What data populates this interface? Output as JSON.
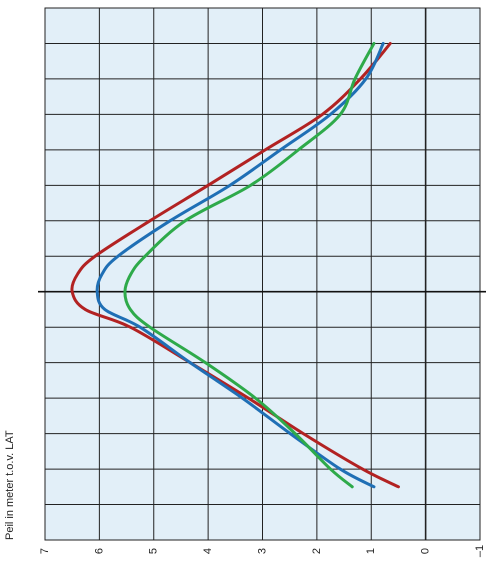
{
  "chart_data": {
    "type": "line",
    "y_label": "Peil in meter t.o.v. LAT",
    "ylim": [
      7,
      -1
    ],
    "yticks": [
      7,
      6,
      5,
      4,
      3,
      2,
      1,
      0,
      {
        "value": -1,
        "label": "–1"
      }
    ],
    "xlim": [
      -8,
      7
    ],
    "xticks": [
      -8,
      -7,
      -6,
      -5,
      -4,
      -3,
      -2,
      -1,
      0,
      1,
      2,
      3,
      4,
      5,
      6,
      7
    ],
    "grid": true,
    "background": "#e2eff8",
    "x": [
      -7,
      -6,
      -5,
      -4,
      -3,
      -2,
      -1,
      -0.5,
      0,
      0.5,
      1,
      2,
      3,
      4,
      5,
      5.5
    ],
    "series": [
      {
        "color": "#b22222",
        "values": [
          0.65,
          1.2,
          1.9,
          2.95,
          4.0,
          5.07,
          6.08,
          6.4,
          6.5,
          6.26,
          5.43,
          4.33,
          3.26,
          2.25,
          1.16,
          0.5
        ]
      },
      {
        "color": "#1f6fb5",
        "values": [
          0.78,
          1.1,
          1.75,
          2.67,
          3.6,
          4.7,
          5.66,
          5.95,
          6.04,
          5.9,
          5.25,
          4.33,
          3.37,
          2.49,
          1.57,
          0.95
        ]
      },
      {
        "color": "#2eaa4a",
        "values": [
          0.95,
          1.3,
          1.57,
          2.34,
          3.22,
          4.42,
          5.16,
          5.42,
          5.53,
          5.43,
          5.07,
          4.05,
          3.13,
          2.4,
          1.75,
          1.35
        ]
      }
    ]
  }
}
